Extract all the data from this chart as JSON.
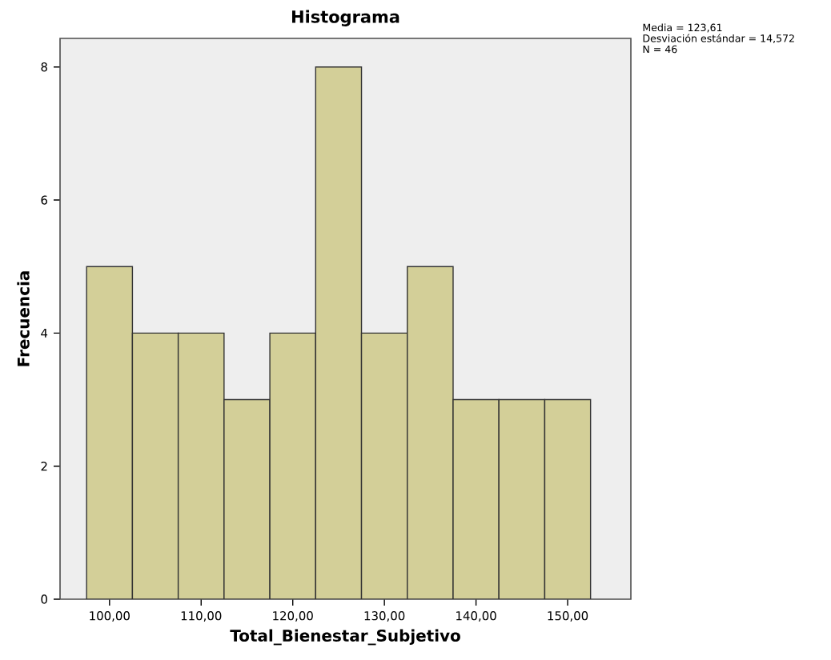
{
  "chart_data": {
    "type": "histogram",
    "title": "Histograma",
    "xlabel": "Total_Bienestar_Subjetivo",
    "ylabel": "Frecuencia",
    "bins": [
      97.5,
      102.5,
      107.5,
      112.5,
      117.5,
      122.5,
      127.5,
      132.5,
      137.5,
      142.5,
      147.5,
      152.5
    ],
    "values": [
      5,
      4,
      4,
      3,
      4,
      8,
      4,
      5,
      3,
      3,
      3
    ],
    "color": "#d3cf98",
    "xlim": [
      94.6,
      156.9
    ],
    "ylim": [
      0,
      8.43
    ],
    "xticks": [
      {
        "value": 100,
        "label": "100,00"
      },
      {
        "value": 110,
        "label": "110,00"
      },
      {
        "value": 120,
        "label": "120,00"
      },
      {
        "value": 130,
        "label": "130,00"
      },
      {
        "value": 140,
        "label": "140,00"
      },
      {
        "value": 150,
        "label": "150,00"
      }
    ],
    "yticks": [
      0,
      2,
      4,
      6,
      8
    ],
    "annotations": [
      "Media = 123,61",
      "Desviación estándar = 14,572",
      "N = 46"
    ]
  }
}
